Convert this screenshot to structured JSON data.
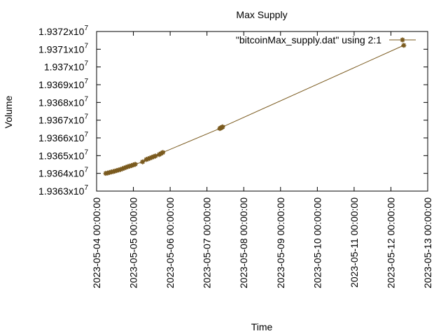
{
  "chart_data": {
    "type": "line",
    "title": "Max Supply",
    "xlabel": "Time",
    "ylabel": "Volume",
    "xlim": [
      "2023-05-04 00:00:00",
      "2023-05-13 00:00:00"
    ],
    "ylim": [
      19363000,
      19372000
    ],
    "x_ticks": [
      "2023-05-04 00:00:00",
      "2023-05-05 00:00:00",
      "2023-05-06 00:00:00",
      "2023-05-07 00:00:00",
      "2023-05-08 00:00:00",
      "2023-05-09 00:00:00",
      "2023-05-10 00:00:00",
      "2023-05-11 00:00:00",
      "2023-05-12 00:00:00",
      "2023-05-13 00:00:00"
    ],
    "y_ticks": [
      {
        "mantissa": "1.9363",
        "value": 19363000
      },
      {
        "mantissa": "1.9364",
        "value": 19364000
      },
      {
        "mantissa": "1.9365",
        "value": 19365000
      },
      {
        "mantissa": "1.9366",
        "value": 19366000
      },
      {
        "mantissa": "1.9367",
        "value": 19367000
      },
      {
        "mantissa": "1.9368",
        "value": 19368000
      },
      {
        "mantissa": "1.9369",
        "value": 19369000
      },
      {
        "mantissa": "1.937",
        "value": 19370000
      },
      {
        "mantissa": "1.9371",
        "value": 19371000
      },
      {
        "mantissa": "1.9372",
        "value": 19372000
      }
    ],
    "y_exponent_base": "x10",
    "y_exponent": "7",
    "grid": false,
    "legend_position": "top-right",
    "series": [
      {
        "name": "\"bitcoinMax_supply.dat\" using 2:1",
        "color": "#7a5a1e",
        "marker": "star",
        "points": [
          {
            "x": "2023-05-04 06:00:00",
            "y": 19364000
          },
          {
            "x": "2023-05-04 07:12:00",
            "y": 19364020
          },
          {
            "x": "2023-05-04 08:24:00",
            "y": 19364050
          },
          {
            "x": "2023-05-04 09:36:00",
            "y": 19364080
          },
          {
            "x": "2023-05-04 10:48:00",
            "y": 19364100
          },
          {
            "x": "2023-05-04 12:00:00",
            "y": 19364130
          },
          {
            "x": "2023-05-04 13:12:00",
            "y": 19364160
          },
          {
            "x": "2023-05-04 14:24:00",
            "y": 19364190
          },
          {
            "x": "2023-05-04 15:36:00",
            "y": 19364220
          },
          {
            "x": "2023-05-04 16:48:00",
            "y": 19364260
          },
          {
            "x": "2023-05-04 18:00:00",
            "y": 19364300
          },
          {
            "x": "2023-05-04 19:12:00",
            "y": 19364340
          },
          {
            "x": "2023-05-04 20:24:00",
            "y": 19364380
          },
          {
            "x": "2023-05-04 21:36:00",
            "y": 19364410
          },
          {
            "x": "2023-05-04 22:48:00",
            "y": 19364440
          },
          {
            "x": "2023-05-05 00:00:00",
            "y": 19364480
          },
          {
            "x": "2023-05-05 01:12:00",
            "y": 19364510
          },
          {
            "x": "2023-05-05 06:00:00",
            "y": 19364650
          },
          {
            "x": "2023-05-05 08:24:00",
            "y": 19364780
          },
          {
            "x": "2023-05-05 09:36:00",
            "y": 19364820
          },
          {
            "x": "2023-05-05 10:48:00",
            "y": 19364860
          },
          {
            "x": "2023-05-05 12:00:00",
            "y": 19364900
          },
          {
            "x": "2023-05-05 13:12:00",
            "y": 19364940
          },
          {
            "x": "2023-05-05 14:24:00",
            "y": 19364980
          },
          {
            "x": "2023-05-05 16:48:00",
            "y": 19365060
          },
          {
            "x": "2023-05-05 18:00:00",
            "y": 19365120
          },
          {
            "x": "2023-05-05 19:12:00",
            "y": 19365180
          },
          {
            "x": "2023-05-07 08:24:00",
            "y": 19366530
          },
          {
            "x": "2023-05-07 09:00:00",
            "y": 19366560
          },
          {
            "x": "2023-05-07 09:36:00",
            "y": 19366590
          },
          {
            "x": "2023-05-07 10:12:00",
            "y": 19366620
          },
          {
            "x": "2023-05-12 08:24:00",
            "y": 19371220
          }
        ]
      }
    ]
  }
}
